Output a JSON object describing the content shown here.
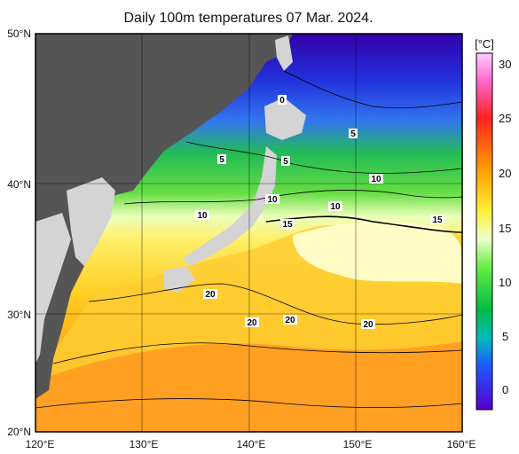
{
  "title": "Daily 100m temperatures 07 Mar. 2024.",
  "lat_ticks": [
    "50°N",
    "40°N",
    "30°N",
    "20°N"
  ],
  "lon_ticks": [
    "120°E",
    "130°E",
    "140°E",
    "150°E",
    "160°E"
  ],
  "colorbar": {
    "unit": "[°C]",
    "ticks": [
      "30",
      "25",
      "20",
      "15",
      "10",
      "5",
      "0"
    ],
    "stops": [
      "#ff99ff",
      "#ff3333",
      "#ff9900",
      "#ffee33",
      "#ffffcc",
      "#88ff66",
      "#00cc44",
      "#00cccc",
      "#3366ff",
      "#3300cc",
      "#6600cc"
    ]
  },
  "contour_labels": [
    "0",
    "5",
    "5",
    "5",
    "10",
    "10",
    "10",
    "10",
    "15",
    "15",
    "20",
    "20",
    "20",
    "20"
  ],
  "colors": {
    "land": "#555555",
    "land_light": "#d4d4d4",
    "cold": "#2233cc",
    "warm": "#ff9900"
  }
}
